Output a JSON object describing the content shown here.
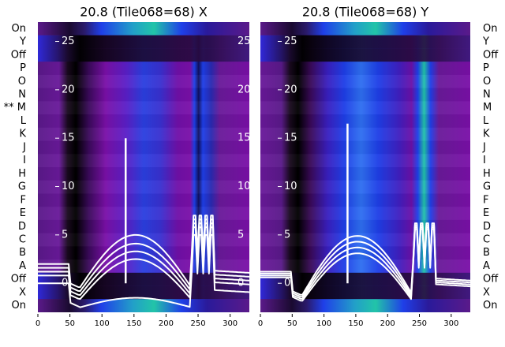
{
  "colors": {
    "background": "#ffffff",
    "trace": "#ffffff",
    "ytick_text": "#ffffff",
    "heatmap_low": "#000000",
    "heatmap_mid": "#7b0fa8",
    "heatmap_blue": "#1f3fe8",
    "heatmap_high": "#22c4a8"
  },
  "chart_data": [
    {
      "type": "heatmap",
      "title": "20.8 (Tile068=68) X",
      "row_labels_left": [
        "On",
        "Y",
        "Off",
        "P",
        "O",
        "N",
        "** M",
        "L",
        "K",
        "J",
        "I",
        "H",
        "G",
        "F",
        "E",
        "D",
        "C",
        "B",
        "A",
        "Off",
        "X",
        "On"
      ],
      "xlim": [
        0,
        330
      ],
      "x_ticks": [
        0,
        50,
        100,
        150,
        200,
        250,
        300
      ],
      "overlay_ylim": [
        -3,
        27
      ],
      "overlay_y_ticks": [
        0,
        5,
        10,
        15,
        20,
        25
      ],
      "grid": false,
      "legend": "none"
    },
    {
      "type": "heatmap",
      "title": "20.8 (Tile068=68) Y",
      "row_labels_right": [
        "On",
        "Y",
        "Off",
        "P",
        "O",
        "N",
        "M",
        "L",
        "K",
        "J",
        "I",
        "H",
        "G",
        "F",
        "E",
        "D",
        "C",
        "B",
        "A",
        "Off",
        "X",
        "On"
      ],
      "xlim": [
        0,
        330
      ],
      "x_ticks": [
        0,
        50,
        100,
        150,
        200,
        250,
        300
      ],
      "overlay_ylim": [
        -3,
        27
      ],
      "overlay_y_ticks": [
        0,
        5,
        10,
        15,
        20,
        25
      ],
      "grid": false,
      "legend": "none"
    }
  ]
}
